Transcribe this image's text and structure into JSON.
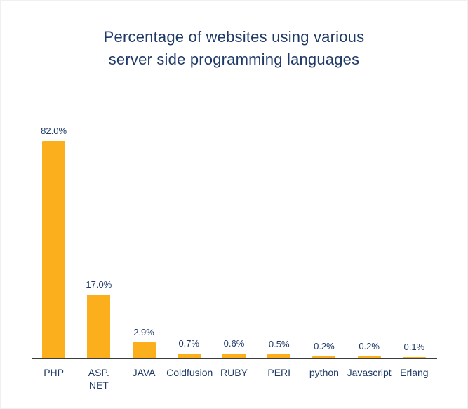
{
  "chart_data": {
    "type": "bar",
    "title": "Percentage of websites using various server side programming languages",
    "categories": [
      "PHP",
      "ASP. NET",
      "JAVA",
      "Coldfusion",
      "RUBY",
      "PERI",
      "python",
      "Javascript",
      "Erlang"
    ],
    "values": [
      82.0,
      17.0,
      2.9,
      0.7,
      0.6,
      0.5,
      0.2,
      0.2,
      0.1
    ],
    "value_labels": [
      "82.0%",
      "17.0%",
      "2.9%",
      "0.7%",
      "0.6%",
      "0.5%",
      "0.2%",
      "0.2%",
      "0.1%"
    ],
    "x_display_labels": [
      "PHP",
      "ASP.\nNET",
      "JAVA",
      "Coldfusion",
      "RUBY",
      "PERI",
      "python",
      "Javascript",
      "Erlang"
    ],
    "xlabel": "",
    "ylabel": "",
    "ylim": [
      0,
      90
    ],
    "grid": false,
    "legend": false,
    "bar_color": "#FBAF1C",
    "text_color": "#1F3A68",
    "axis_color": "#3d3d3d"
  }
}
